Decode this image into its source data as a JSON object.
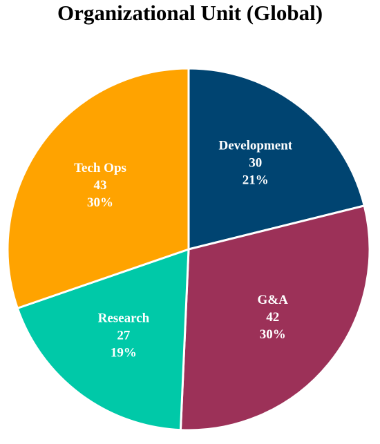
{
  "chart_data": {
    "type": "pie",
    "title": "Organizational Unit (Global)",
    "start_angle_deg": 0,
    "direction": "clockwise",
    "slices": [
      {
        "label": "Development",
        "value": 30,
        "percent": "21%",
        "color": "#004471"
      },
      {
        "label": "G&A",
        "value": 42,
        "percent": "30%",
        "color": "#9C3158"
      },
      {
        "label": "Research",
        "value": 27,
        "percent": "19%",
        "color": "#00C9A8"
      },
      {
        "label": "Tech Ops",
        "value": 43,
        "percent": "30%",
        "color": "#FFA300"
      }
    ],
    "slice_border_color": "#ffffff",
    "legend": "none",
    "data_labels": "inside"
  }
}
